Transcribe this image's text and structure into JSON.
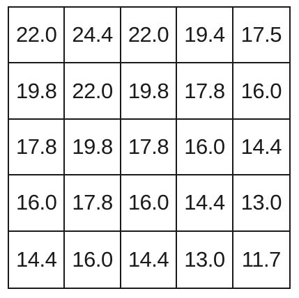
{
  "grid": {
    "rows": [
      [
        "22.0",
        "24.4",
        "22.0",
        "19.4",
        "17.5"
      ],
      [
        "19.8",
        "22.0",
        "19.8",
        "17.8",
        "16.0"
      ],
      [
        "17.8",
        "19.8",
        "17.8",
        "16.0",
        "14.4"
      ],
      [
        "16.0",
        "17.8",
        "16.0",
        "14.4",
        "13.0"
      ],
      [
        "14.4",
        "16.0",
        "14.4",
        "13.0",
        "11.7"
      ]
    ]
  }
}
